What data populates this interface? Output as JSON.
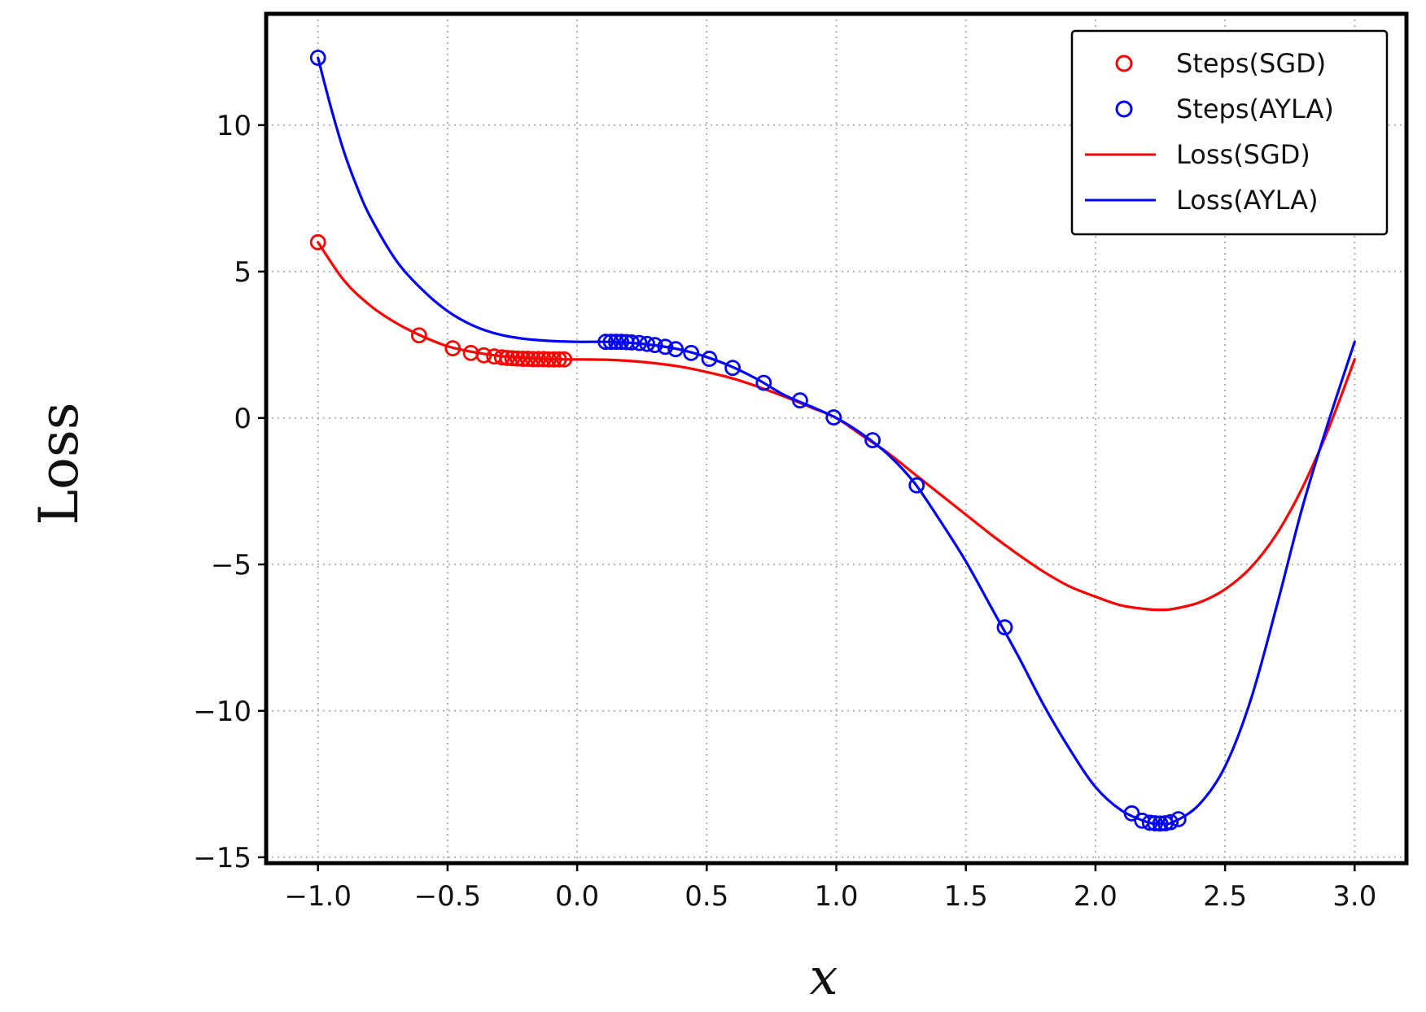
{
  "chart_data": {
    "type": "line",
    "title": "",
    "xlabel": "x",
    "ylabel": "Loss",
    "xlim": [
      -1.2,
      3.2
    ],
    "ylim": [
      -15.2,
      13.8
    ],
    "xticks": [
      -1.0,
      -0.5,
      0.0,
      0.5,
      1.0,
      1.5,
      2.0,
      2.5,
      3.0
    ],
    "xtick_labels": [
      "−1.0",
      "−0.5",
      "0.0",
      "0.5",
      "1.0",
      "1.5",
      "2.0",
      "2.5",
      "3.0"
    ],
    "yticks": [
      10,
      5,
      0,
      -5,
      -10,
      -15
    ],
    "ytick_labels": [
      "10",
      "5",
      "0",
      "−5",
      "−10",
      "−15"
    ],
    "grid": true,
    "legend_position": "top-right",
    "legend": [
      {
        "label": "Steps(SGD)",
        "kind": "marker",
        "color": "#ff0000"
      },
      {
        "label": "Steps(AYLA)",
        "kind": "marker",
        "color": "#0000ff"
      },
      {
        "label": "Loss(SGD)",
        "kind": "line",
        "color": "#ff0000"
      },
      {
        "label": "Loss(AYLA)",
        "kind": "line",
        "color": "#0000ff"
      }
    ],
    "series": [
      {
        "name": "Loss(SGD)",
        "kind": "line",
        "color": "#ff0000",
        "x": [
          -1.0,
          -0.9,
          -0.8,
          -0.7,
          -0.6,
          -0.5,
          -0.4,
          -0.3,
          -0.2,
          -0.1,
          0.0,
          0.1,
          0.2,
          0.3,
          0.4,
          0.5,
          0.6,
          0.7,
          0.8,
          0.9,
          1.0,
          1.1,
          1.2,
          1.3,
          1.4,
          1.5,
          1.6,
          1.7,
          1.8,
          1.9,
          2.0,
          2.1,
          2.2,
          2.25,
          2.3,
          2.4,
          2.5,
          2.6,
          2.7,
          2.8,
          2.9,
          3.0
        ],
        "y": [
          6.0,
          4.7,
          3.85,
          3.25,
          2.8,
          2.45,
          2.25,
          2.12,
          2.05,
          2.01,
          2.0,
          1.99,
          1.95,
          1.87,
          1.75,
          1.57,
          1.35,
          1.06,
          0.73,
          0.37,
          0.0,
          -0.6,
          -1.2,
          -1.9,
          -2.6,
          -3.3,
          -4.0,
          -4.65,
          -5.25,
          -5.75,
          -6.1,
          -6.4,
          -6.53,
          -6.55,
          -6.52,
          -6.3,
          -5.85,
          -5.1,
          -3.95,
          -2.35,
          -0.35,
          2.0
        ]
      },
      {
        "name": "Loss(AYLA)",
        "kind": "line",
        "color": "#0000ff",
        "x": [
          -1.0,
          -0.95,
          -0.9,
          -0.85,
          -0.8,
          -0.7,
          -0.6,
          -0.5,
          -0.4,
          -0.3,
          -0.2,
          -0.1,
          0.0,
          0.1,
          0.2,
          0.3,
          0.4,
          0.5,
          0.6,
          0.7,
          0.8,
          0.9,
          1.0,
          1.1,
          1.2,
          1.3,
          1.4,
          1.5,
          1.6,
          1.7,
          1.8,
          1.9,
          2.0,
          2.1,
          2.2,
          2.25,
          2.3,
          2.4,
          2.5,
          2.6,
          2.7,
          2.8,
          2.9,
          3.0
        ],
        "y": [
          12.3,
          10.6,
          9.1,
          7.9,
          6.9,
          5.4,
          4.4,
          3.65,
          3.15,
          2.85,
          2.7,
          2.63,
          2.6,
          2.6,
          2.57,
          2.48,
          2.33,
          2.08,
          1.74,
          1.3,
          0.78,
          0.4,
          0.0,
          -0.55,
          -1.25,
          -2.2,
          -3.5,
          -4.9,
          -6.5,
          -8.1,
          -9.8,
          -11.3,
          -12.6,
          -13.4,
          -13.8,
          -13.85,
          -13.8,
          -13.2,
          -11.9,
          -9.6,
          -6.4,
          -3.0,
          -0.1,
          2.6
        ]
      },
      {
        "name": "Steps(SGD)",
        "kind": "scatter",
        "color": "#ff0000",
        "x": [
          -1.0,
          -0.61,
          -0.48,
          -0.41,
          -0.36,
          -0.32,
          -0.29,
          -0.27,
          -0.25,
          -0.23,
          -0.21,
          -0.19,
          -0.17,
          -0.15,
          -0.13,
          -0.11,
          -0.09,
          -0.07,
          -0.05
        ],
        "y": [
          6.0,
          2.82,
          2.38,
          2.22,
          2.14,
          2.1,
          2.07,
          2.05,
          2.04,
          2.03,
          2.02,
          2.02,
          2.01,
          2.01,
          2.01,
          2.0,
          2.0,
          2.0,
          2.0
        ]
      },
      {
        "name": "Steps(AYLA)",
        "kind": "scatter",
        "color": "#0000ff",
        "x": [
          -1.0,
          0.11,
          0.13,
          0.15,
          0.17,
          0.19,
          0.21,
          0.24,
          0.27,
          0.3,
          0.34,
          0.38,
          0.44,
          0.51,
          0.6,
          0.72,
          0.86,
          0.99,
          1.14,
          1.31,
          1.65,
          2.14,
          2.18,
          2.21,
          2.23,
          2.25,
          2.27,
          2.29,
          2.32
        ],
        "y": [
          12.3,
          2.6,
          2.6,
          2.6,
          2.6,
          2.59,
          2.58,
          2.56,
          2.53,
          2.49,
          2.43,
          2.35,
          2.22,
          2.02,
          1.71,
          1.2,
          0.6,
          0.02,
          -0.76,
          -2.3,
          -7.15,
          -13.5,
          -13.75,
          -13.82,
          -13.84,
          -13.85,
          -13.84,
          -13.8,
          -13.7
        ]
      }
    ]
  }
}
